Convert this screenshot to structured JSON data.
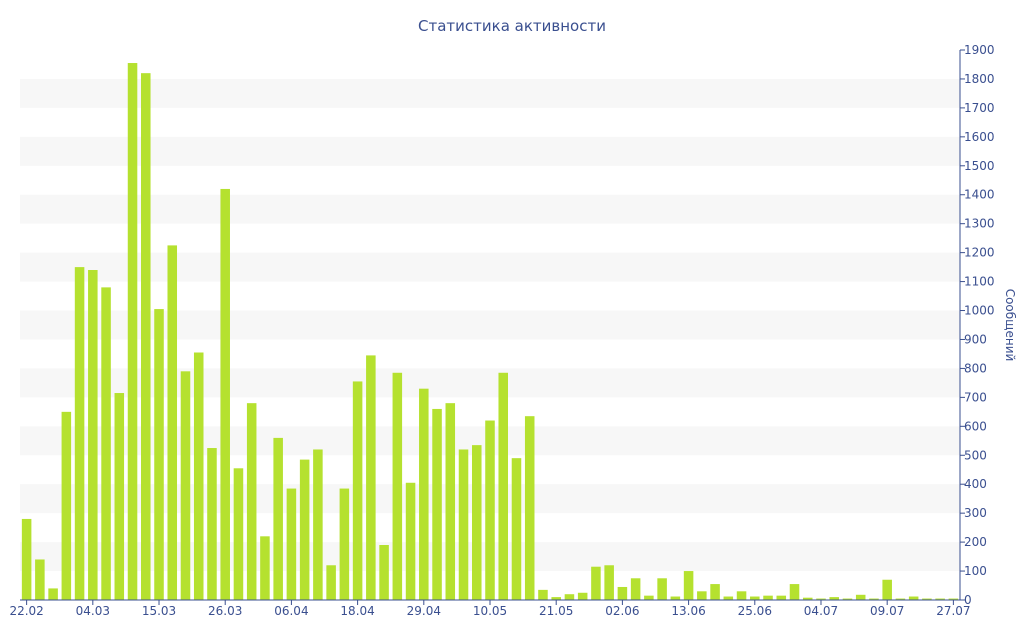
{
  "chart_data": {
    "type": "bar",
    "title": "Статистика активности",
    "ylabel": "Сообщений",
    "xlabel": "",
    "ylim": [
      0,
      1900
    ],
    "yticks": [
      0,
      100,
      200,
      300,
      400,
      500,
      600,
      700,
      800,
      900,
      1000,
      1100,
      1200,
      1300,
      1400,
      1500,
      1600,
      1700,
      1800,
      1900
    ],
    "y_axis_side": "right",
    "grid": "alternating horizontal bands",
    "bar_color": "#b5e12f",
    "band_color": "#f7f7f7",
    "text_color": "#3a4f8f",
    "x_tick_labels": [
      {
        "index": 0,
        "label": "22.02"
      },
      {
        "index": 5,
        "label": "04.03"
      },
      {
        "index": 10,
        "label": "15.03"
      },
      {
        "index": 15,
        "label": "26.03"
      },
      {
        "index": 20,
        "label": "06.04"
      },
      {
        "index": 25,
        "label": "18.04"
      },
      {
        "index": 30,
        "label": "29.04"
      },
      {
        "index": 35,
        "label": "10.05"
      },
      {
        "index": 40,
        "label": "21.05"
      },
      {
        "index": 45,
        "label": "02.06"
      },
      {
        "index": 50,
        "label": "13.06"
      },
      {
        "index": 55,
        "label": "25.06"
      },
      {
        "index": 60,
        "label": "04.07"
      },
      {
        "index": 65,
        "label": "09.07"
      },
      {
        "index": 70,
        "label": "27.07"
      }
    ],
    "values": [
      280,
      140,
      40,
      650,
      1150,
      1140,
      1080,
      715,
      1855,
      1820,
      1005,
      1225,
      790,
      855,
      525,
      1420,
      455,
      680,
      220,
      560,
      385,
      485,
      520,
      120,
      385,
      755,
      845,
      190,
      785,
      405,
      730,
      660,
      680,
      520,
      535,
      620,
      785,
      490,
      635,
      35,
      10,
      20,
      25,
      115,
      120,
      45,
      75,
      15,
      75,
      12,
      100,
      30,
      55,
      12,
      30,
      12,
      15,
      15,
      55,
      8,
      5,
      10,
      5,
      18,
      5,
      70,
      5,
      12,
      5,
      5,
      5
    ]
  }
}
